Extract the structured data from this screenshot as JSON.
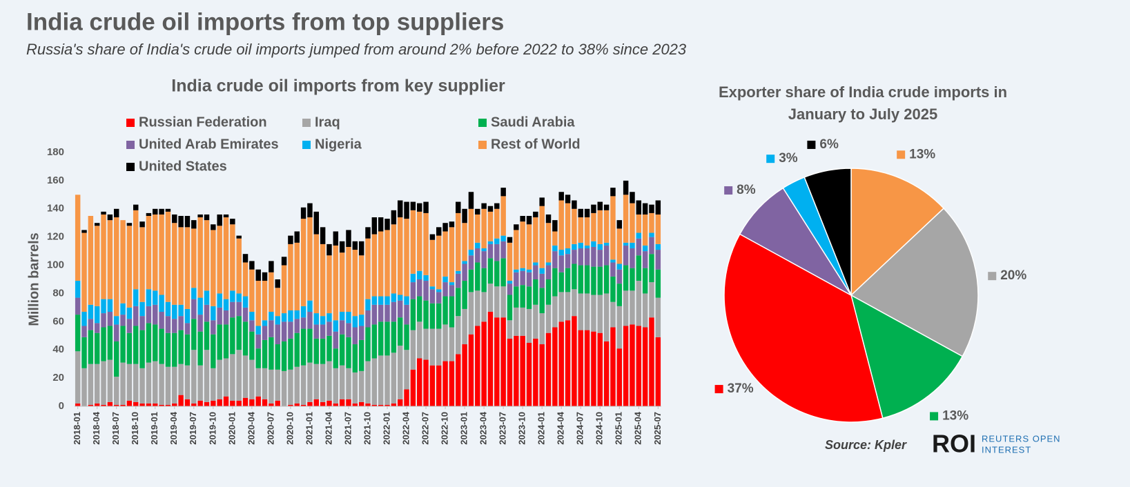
{
  "header": {
    "title": "India crude oil imports from top suppliers",
    "subtitle": "Russia's share of India's crude oil imports jumped from around 2% before 2022 to 38% since 2023"
  },
  "footer": {
    "source": "Source: Kpler",
    "logo": "ROI",
    "logo_line1": "REUTERS OPEN",
    "logo_line2": "INTEREST"
  },
  "chart_data": [
    {
      "type": "bar",
      "stacked": true,
      "title": "India crude oil imports from key supplier",
      "y_label": "Million barrels",
      "legend": "top",
      "categories": [
        "2018-01",
        null,
        null,
        "2018-04",
        null,
        null,
        "2018-07",
        null,
        null,
        "2018-10",
        null,
        null,
        "2019-01",
        null,
        null,
        "2019-04",
        null,
        null,
        "2019-07",
        null,
        null,
        "2019-10",
        null,
        null,
        "2020-01",
        null,
        null,
        "2020-04",
        null,
        null,
        "2020-07",
        null,
        null,
        "2020-10",
        null,
        null,
        "2021-01",
        null,
        null,
        "2021-04",
        null,
        null,
        "2021-07",
        null,
        null,
        "2021-10",
        null,
        null,
        "2022-01",
        null,
        null,
        "2022-04",
        null,
        null,
        "2022-07",
        null,
        null,
        "2022-10",
        null,
        null,
        "2023-01",
        null,
        null,
        "2023-04",
        null,
        null,
        "2023-07",
        null,
        null,
        "2023-10",
        null,
        null,
        "2024-01",
        null,
        null,
        "2024-04",
        null,
        null,
        "2024-07",
        null,
        null,
        "2024-10",
        null,
        null,
        "2025-01",
        null,
        null,
        "2025-04",
        null,
        null,
        "2025-07"
      ],
      "ylim": [
        0,
        180
      ],
      "yticks": [
        0,
        20,
        40,
        60,
        80,
        100,
        120,
        140,
        160,
        180
      ],
      "series": [
        {
          "name": "Russian Federation",
          "color": "#ff0000",
          "values": [
            2,
            0,
            1,
            2,
            1,
            3,
            1,
            1,
            4,
            3,
            2,
            2,
            2,
            1,
            1,
            2,
            8,
            5,
            2,
            4,
            3,
            4,
            5,
            7,
            4,
            4,
            6,
            5,
            7,
            5,
            2,
            4,
            0,
            1,
            2,
            1,
            3,
            5,
            3,
            4,
            2,
            5,
            5,
            2,
            3,
            2,
            1,
            1,
            1,
            2,
            5,
            12,
            26,
            34,
            33,
            29,
            29,
            32,
            32,
            37,
            44,
            51,
            57,
            60,
            67,
            63,
            63,
            48,
            50,
            50,
            45,
            48,
            44,
            52,
            56,
            60,
            61,
            64,
            54,
            54,
            53,
            52,
            46,
            56,
            41,
            57,
            58,
            57,
            56,
            63,
            49
          ]
        },
        {
          "name": "Iraq",
          "color": "#a6a6a6",
          "values": [
            37,
            27,
            29,
            28,
            31,
            30,
            20,
            30,
            26,
            27,
            25,
            29,
            30,
            29,
            27,
            26,
            22,
            24,
            38,
            25,
            37,
            23,
            28,
            27,
            33,
            36,
            30,
            28,
            20,
            22,
            24,
            22,
            25,
            25,
            26,
            28,
            28,
            25,
            27,
            28,
            25,
            24,
            22,
            22,
            22,
            30,
            33,
            35,
            35,
            36,
            38,
            28,
            28,
            26,
            22,
            26,
            26,
            26,
            24,
            27,
            25,
            30,
            25,
            21,
            20,
            22,
            22,
            13,
            20,
            20,
            24,
            24,
            22,
            20,
            22,
            21,
            20,
            19,
            26,
            26,
            26,
            27,
            34,
            18,
            30,
            25,
            24,
            32,
            24,
            25,
            28
          ]
        },
        {
          "name": "Saudi Arabia",
          "color": "#00b050",
          "values": [
            26,
            22,
            24,
            22,
            24,
            24,
            25,
            26,
            22,
            27,
            27,
            28,
            26,
            25,
            24,
            24,
            24,
            22,
            22,
            24,
            20,
            24,
            25,
            24,
            26,
            24,
            24,
            20,
            14,
            20,
            23,
            18,
            21,
            22,
            24,
            26,
            24,
            18,
            18,
            18,
            14,
            22,
            22,
            20,
            22,
            24,
            24,
            24,
            24,
            22,
            20,
            18,
            22,
            18,
            20,
            18,
            18,
            20,
            22,
            20,
            20,
            16,
            20,
            17,
            18,
            18,
            20,
            18,
            15,
            16,
            16,
            18,
            18,
            18,
            20,
            14,
            17,
            18,
            20,
            20,
            20,
            20,
            20,
            18,
            16,
            18,
            16,
            18,
            18,
            20,
            20
          ]
        },
        {
          "name": "United Arab Emirates",
          "color": "#8064a2",
          "values": [
            12,
            8,
            8,
            7,
            10,
            10,
            12,
            8,
            10,
            14,
            10,
            12,
            14,
            12,
            12,
            10,
            10,
            8,
            14,
            12,
            12,
            10,
            12,
            10,
            11,
            10,
            10,
            8,
            10,
            10,
            12,
            14,
            14,
            12,
            10,
            8,
            12,
            10,
            10,
            10,
            12,
            10,
            10,
            12,
            10,
            12,
            14,
            12,
            12,
            14,
            12,
            14,
            12,
            12,
            14,
            10,
            8,
            10,
            8,
            10,
            12,
            10,
            10,
            12,
            10,
            12,
            12,
            8,
            10,
            10,
            10,
            10,
            10,
            10,
            12,
            12,
            10,
            10,
            12,
            12,
            14,
            12,
            14,
            10,
            10,
            14,
            14,
            12,
            12,
            12,
            14
          ]
        },
        {
          "name": "Nigeria",
          "color": "#00b0f0",
          "values": [
            12,
            10,
            10,
            12,
            10,
            9,
            6,
            8,
            8,
            12,
            10,
            12,
            10,
            12,
            10,
            10,
            8,
            10,
            8,
            12,
            10,
            10,
            10,
            8,
            8,
            6,
            8,
            6,
            6,
            4,
            6,
            6,
            6,
            8,
            6,
            8,
            8,
            8,
            6,
            6,
            8,
            6,
            8,
            8,
            8,
            8,
            6,
            6,
            6,
            6,
            4,
            6,
            6,
            6,
            4,
            2,
            2,
            4,
            2,
            2,
            2,
            4,
            4,
            2,
            2,
            4,
            4,
            2,
            2,
            2,
            2,
            2,
            4,
            2,
            4,
            4,
            4,
            4,
            4,
            2,
            4,
            4,
            2,
            2,
            4,
            2,
            4,
            4,
            4,
            3,
            4
          ]
        },
        {
          "name": "Rest of World",
          "color": "#f79646",
          "values": [
            61,
            56,
            63,
            57,
            60,
            56,
            70,
            59,
            58,
            56,
            53,
            52,
            54,
            57,
            64,
            58,
            55,
            58,
            42,
            57,
            50,
            54,
            48,
            58,
            47,
            39,
            24,
            30,
            32,
            28,
            28,
            20,
            34,
            47,
            48,
            62,
            59,
            56,
            51,
            41,
            53,
            42,
            46,
            47,
            42,
            43,
            44,
            46,
            47,
            49,
            55,
            55,
            45,
            42,
            44,
            33,
            38,
            32,
            39,
            41,
            27,
            29,
            20,
            28,
            21,
            21,
            28,
            27,
            28,
            33,
            32,
            32,
            44,
            28,
            10,
            35,
            32,
            25,
            18,
            20,
            20,
            24,
            23,
            45,
            25,
            34,
            28,
            13,
            22,
            14,
            21
          ]
        },
        {
          "name": "United States",
          "color": "#000000",
          "values": [
            0,
            2,
            0,
            2,
            2,
            4,
            6,
            0,
            2,
            4,
            4,
            2,
            4,
            4,
            2,
            6,
            8,
            8,
            6,
            2,
            4,
            4,
            8,
            2,
            4,
            2,
            6,
            6,
            8,
            6,
            8,
            6,
            6,
            6,
            8,
            8,
            10,
            16,
            12,
            8,
            10,
            8,
            12,
            6,
            10,
            8,
            12,
            10,
            8,
            10,
            12,
            12,
            6,
            6,
            8,
            4,
            6,
            6,
            4,
            8,
            10,
            12,
            4,
            4,
            4,
            4,
            6,
            4,
            4,
            4,
            6,
            4,
            6,
            6,
            8,
            6,
            6,
            6,
            6,
            6,
            6,
            6,
            4,
            6,
            6,
            10,
            8,
            10,
            8,
            6,
            10
          ]
        }
      ]
    },
    {
      "type": "pie",
      "title": "Exporter share of India crude imports in January to July 2025",
      "values": [
        13,
        20,
        13,
        37,
        8,
        3,
        6
      ],
      "value_labels": [
        "13%",
        "20%",
        "13%",
        "37%",
        "8%",
        "3%",
        "6%"
      ],
      "colors": [
        "#f79646",
        "#a6a6a6",
        "#00b050",
        "#ff0000",
        "#8064a2",
        "#00b0f0",
        "#000000"
      ]
    }
  ]
}
